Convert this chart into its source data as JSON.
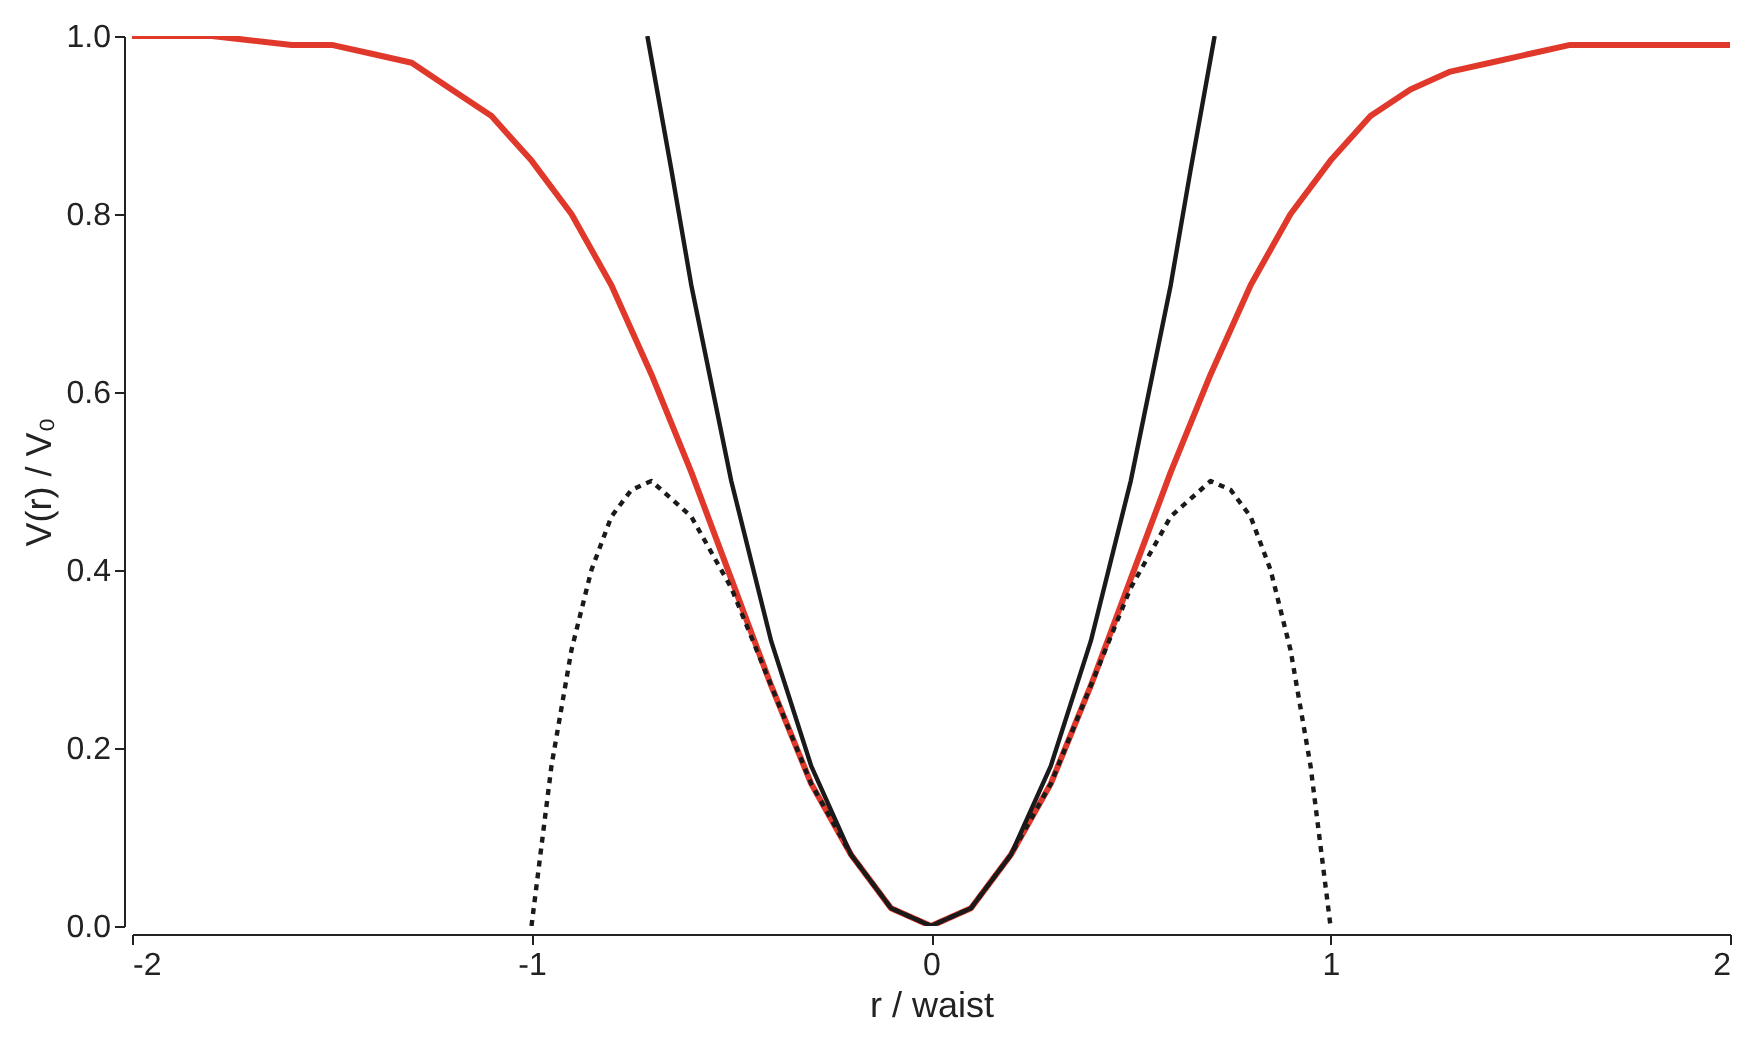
{
  "chart_data": {
    "type": "line",
    "xlabel": "r / waist",
    "ylabel": "V(r) / V₀",
    "xlim": [
      -2,
      2
    ],
    "ylim": [
      0,
      1.0
    ],
    "xticks": [
      -2,
      -1,
      0,
      1,
      2
    ],
    "yticks": [
      {
        "value": 0,
        "label": "0.0"
      },
      {
        "value": 0.2,
        "label": "0.2"
      },
      {
        "value": 0.4,
        "label": "0.4"
      },
      {
        "value": 0.6,
        "label": "0.6"
      },
      {
        "value": 0.8,
        "label": "0.8"
      },
      {
        "value": 1.0,
        "label": "1.0"
      }
    ],
    "grid": false,
    "marker": "none",
    "series": [
      {
        "color": "#e0392b",
        "line_style": "solid",
        "x": [
          -2,
          -1.8,
          -1.6,
          -1.5,
          -1.4,
          -1.3,
          -1.2,
          -1.1,
          -1.0,
          -0.9,
          -0.8,
          -0.7,
          -0.6,
          -0.5,
          -0.4,
          -0.3,
          -0.2,
          -0.1,
          0,
          0.1,
          0.2,
          0.3,
          0.4,
          0.5,
          0.6,
          0.7,
          0.8,
          0.9,
          1.0,
          1.1,
          1.2,
          1.3,
          1.4,
          1.5,
          1.6,
          1.8,
          2
        ],
        "values": [
          1.0,
          1.0,
          0.99,
          0.99,
          0.98,
          0.97,
          0.94,
          0.91,
          0.86,
          0.8,
          0.72,
          0.62,
          0.51,
          0.39,
          0.27,
          0.16,
          0.08,
          0.02,
          0,
          0.02,
          0.08,
          0.16,
          0.27,
          0.39,
          0.51,
          0.62,
          0.72,
          0.8,
          0.86,
          0.91,
          0.94,
          0.96,
          0.97,
          0.98,
          0.99,
          0.99,
          0.99
        ]
      },
      {
        "color": "#1a1a1a",
        "line_style": "solid",
        "x": [
          -0.71,
          -0.65,
          -0.6,
          -0.5,
          -0.4,
          -0.3,
          -0.2,
          -0.1,
          0,
          0.1,
          0.2,
          0.3,
          0.4,
          0.5,
          0.6,
          0.65,
          0.71
        ],
        "values": [
          1.0,
          0.85,
          0.72,
          0.5,
          0.32,
          0.18,
          0.08,
          0.02,
          0,
          0.02,
          0.08,
          0.18,
          0.32,
          0.5,
          0.72,
          0.85,
          1.0
        ]
      },
      {
        "color": "#1a1a1a",
        "line_style": "dotted",
        "x": [
          -1,
          -0.95,
          -0.9,
          -0.85,
          -0.8,
          -0.75,
          -0.7,
          -0.6,
          -0.5,
          -0.4,
          -0.3,
          -0.2,
          -0.1,
          0,
          0.1,
          0.2,
          0.3,
          0.4,
          0.5,
          0.6,
          0.7,
          0.75,
          0.8,
          0.85,
          0.9,
          0.95,
          1
        ],
        "values": [
          0,
          0.18,
          0.31,
          0.4,
          0.46,
          0.49,
          0.5,
          0.46,
          0.38,
          0.27,
          0.16,
          0.08,
          0.02,
          0,
          0.02,
          0.08,
          0.16,
          0.27,
          0.38,
          0.46,
          0.5,
          0.49,
          0.46,
          0.4,
          0.31,
          0.18,
          0
        ]
      }
    ]
  }
}
